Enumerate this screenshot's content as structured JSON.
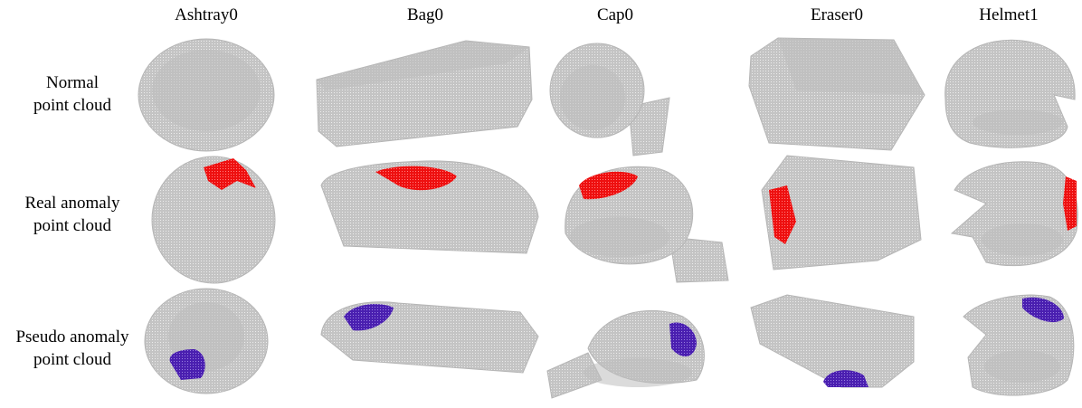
{
  "columns": [
    "Ashtray0",
    "Bag0",
    "Cap0",
    "Eraser0",
    "Helmet1"
  ],
  "rows": [
    [
      "Normal",
      "point cloud"
    ],
    [
      "Real anomaly",
      "point cloud"
    ],
    [
      "Pseudo anomaly",
      "point cloud"
    ]
  ]
}
